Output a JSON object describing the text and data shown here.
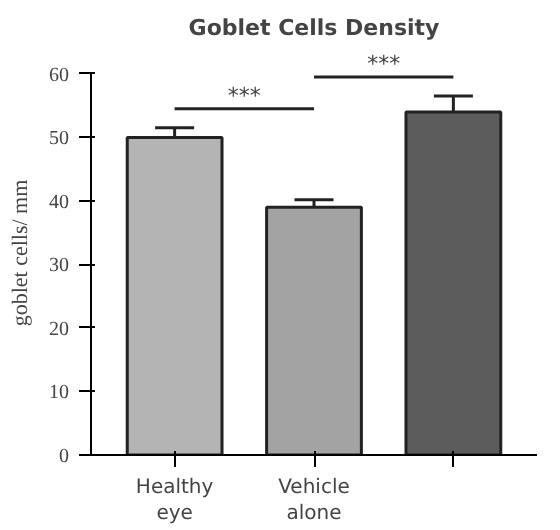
{
  "chart_data": {
    "type": "bar",
    "title": "Goblet Cells Density",
    "ylabel": "goblet cells/ mm",
    "categories": [
      "Healthy\neye",
      "Vehicle\nalone",
      null
    ],
    "values": [
      50,
      39,
      54
    ],
    "errors": [
      1.5,
      1.2,
      2.5
    ],
    "colors": [
      "#b4b4b4",
      "#a3a3a3",
      "#5c5c5c"
    ],
    "ylim": [
      0,
      60
    ],
    "yticks": [
      0,
      10,
      20,
      30,
      40,
      50,
      60
    ],
    "grid": false,
    "annotations": [
      "***",
      "***"
    ]
  }
}
